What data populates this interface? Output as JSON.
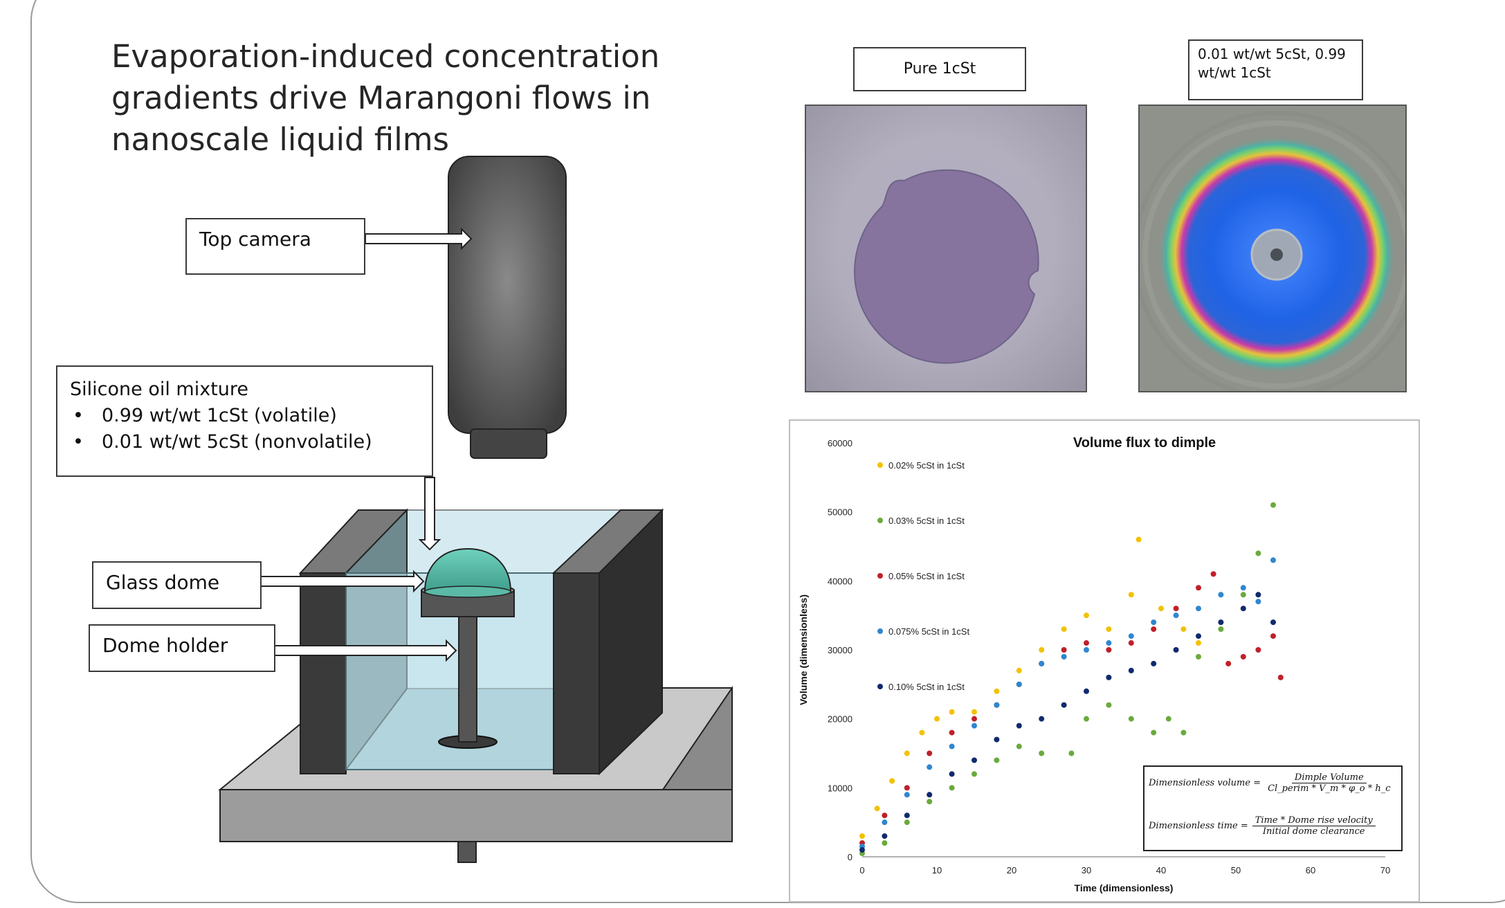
{
  "title": "Evaporation-induced concentration gradients drive Marangoni flows in nanoscale liquid films",
  "diagram": {
    "labels": {
      "top_camera": "Top camera",
      "glass_dome": "Glass dome",
      "dome_holder": "Dome holder"
    },
    "mixture": {
      "heading": "Silicone oil mixture",
      "items": [
        "0.99 wt/wt 1cSt (volatile)",
        "0.01 wt/wt 5cSt (nonvolatile)"
      ]
    }
  },
  "images": {
    "left_label": "Pure 1cSt",
    "right_label": "0.01 wt/wt 5cSt, 0.99 wt/wt 1cSt"
  },
  "chart_data": {
    "type": "scatter",
    "title": "Volume flux to dimple",
    "xlabel": "Time (dimensionless)",
    "ylabel": "Volume (dimensionless)",
    "xlim": [
      0,
      70
    ],
    "ylim": [
      0,
      60000
    ],
    "x_ticks": [
      0,
      10,
      20,
      30,
      40,
      50,
      60,
      70
    ],
    "y_ticks": [
      0,
      10000,
      20000,
      30000,
      40000,
      50000,
      60000
    ],
    "grid": false,
    "legend_position": "left",
    "series": [
      {
        "name": "0.02% 5cSt in 1cSt",
        "color": "#f2c200",
        "points": [
          [
            0,
            3000
          ],
          [
            2,
            7000
          ],
          [
            4,
            11000
          ],
          [
            6,
            15000
          ],
          [
            8,
            18000
          ],
          [
            10,
            20000
          ],
          [
            12,
            21000
          ],
          [
            15,
            21000
          ],
          [
            18,
            24000
          ],
          [
            21,
            27000
          ],
          [
            24,
            30000
          ],
          [
            27,
            33000
          ],
          [
            30,
            35000
          ],
          [
            33,
            33000
          ],
          [
            36,
            38000
          ],
          [
            37,
            46000
          ],
          [
            40,
            36000
          ],
          [
            43,
            33000
          ],
          [
            45,
            31000
          ]
        ]
      },
      {
        "name": "0.03% 5cSt in 1cSt",
        "color": "#6aaa3c",
        "points": [
          [
            0,
            500
          ],
          [
            3,
            2000
          ],
          [
            6,
            5000
          ],
          [
            9,
            8000
          ],
          [
            12,
            10000
          ],
          [
            15,
            12000
          ],
          [
            18,
            14000
          ],
          [
            21,
            16000
          ],
          [
            24,
            15000
          ],
          [
            28,
            15000
          ],
          [
            30,
            20000
          ],
          [
            33,
            22000
          ],
          [
            36,
            20000
          ],
          [
            39,
            18000
          ],
          [
            41,
            20000
          ],
          [
            43,
            18000
          ],
          [
            45,
            29000
          ],
          [
            48,
            33000
          ],
          [
            51,
            38000
          ],
          [
            53,
            44000
          ],
          [
            55,
            51000
          ]
        ]
      },
      {
        "name": "0.05% 5cSt in 1cSt",
        "color": "#c0202a",
        "points": [
          [
            0,
            2000
          ],
          [
            3,
            6000
          ],
          [
            6,
            10000
          ],
          [
            9,
            15000
          ],
          [
            12,
            18000
          ],
          [
            15,
            20000
          ],
          [
            18,
            22000
          ],
          [
            21,
            25000
          ],
          [
            24,
            28000
          ],
          [
            27,
            30000
          ],
          [
            30,
            31000
          ],
          [
            33,
            30000
          ],
          [
            36,
            31000
          ],
          [
            39,
            33000
          ],
          [
            42,
            36000
          ],
          [
            45,
            39000
          ],
          [
            47,
            41000
          ],
          [
            49,
            28000
          ],
          [
            51,
            29000
          ],
          [
            53,
            30000
          ],
          [
            55,
            32000
          ],
          [
            56,
            26000
          ]
        ]
      },
      {
        "name": "0.075% 5cSt in 1cSt",
        "color": "#2f86d0",
        "points": [
          [
            0,
            1500
          ],
          [
            3,
            5000
          ],
          [
            6,
            9000
          ],
          [
            9,
            13000
          ],
          [
            12,
            16000
          ],
          [
            15,
            19000
          ],
          [
            18,
            22000
          ],
          [
            21,
            25000
          ],
          [
            24,
            28000
          ],
          [
            27,
            29000
          ],
          [
            30,
            30000
          ],
          [
            33,
            31000
          ],
          [
            36,
            32000
          ],
          [
            39,
            34000
          ],
          [
            42,
            35000
          ],
          [
            45,
            36000
          ],
          [
            48,
            38000
          ],
          [
            51,
            39000
          ],
          [
            53,
            37000
          ],
          [
            55,
            43000
          ]
        ]
      },
      {
        "name": "0.10% 5cSt in 1cSt",
        "color": "#102a6e",
        "points": [
          [
            0,
            1000
          ],
          [
            3,
            3000
          ],
          [
            6,
            6000
          ],
          [
            9,
            9000
          ],
          [
            12,
            12000
          ],
          [
            15,
            14000
          ],
          [
            18,
            17000
          ],
          [
            21,
            19000
          ],
          [
            24,
            20000
          ],
          [
            27,
            22000
          ],
          [
            30,
            24000
          ],
          [
            33,
            26000
          ],
          [
            36,
            27000
          ],
          [
            39,
            28000
          ],
          [
            42,
            30000
          ],
          [
            45,
            32000
          ],
          [
            48,
            34000
          ],
          [
            51,
            36000
          ],
          [
            53,
            38000
          ],
          [
            55,
            34000
          ]
        ]
      }
    ],
    "annotation": {
      "volume_lhs": "Dimensionless volume =",
      "volume_num": "Dimple Volume",
      "volume_den": "Cl_perim * V_m * φ_o * h_c",
      "time_lhs": "Dimensionless time =",
      "time_num": "Time * Dome rise velocity",
      "time_den": "Initial dome clearance"
    }
  }
}
